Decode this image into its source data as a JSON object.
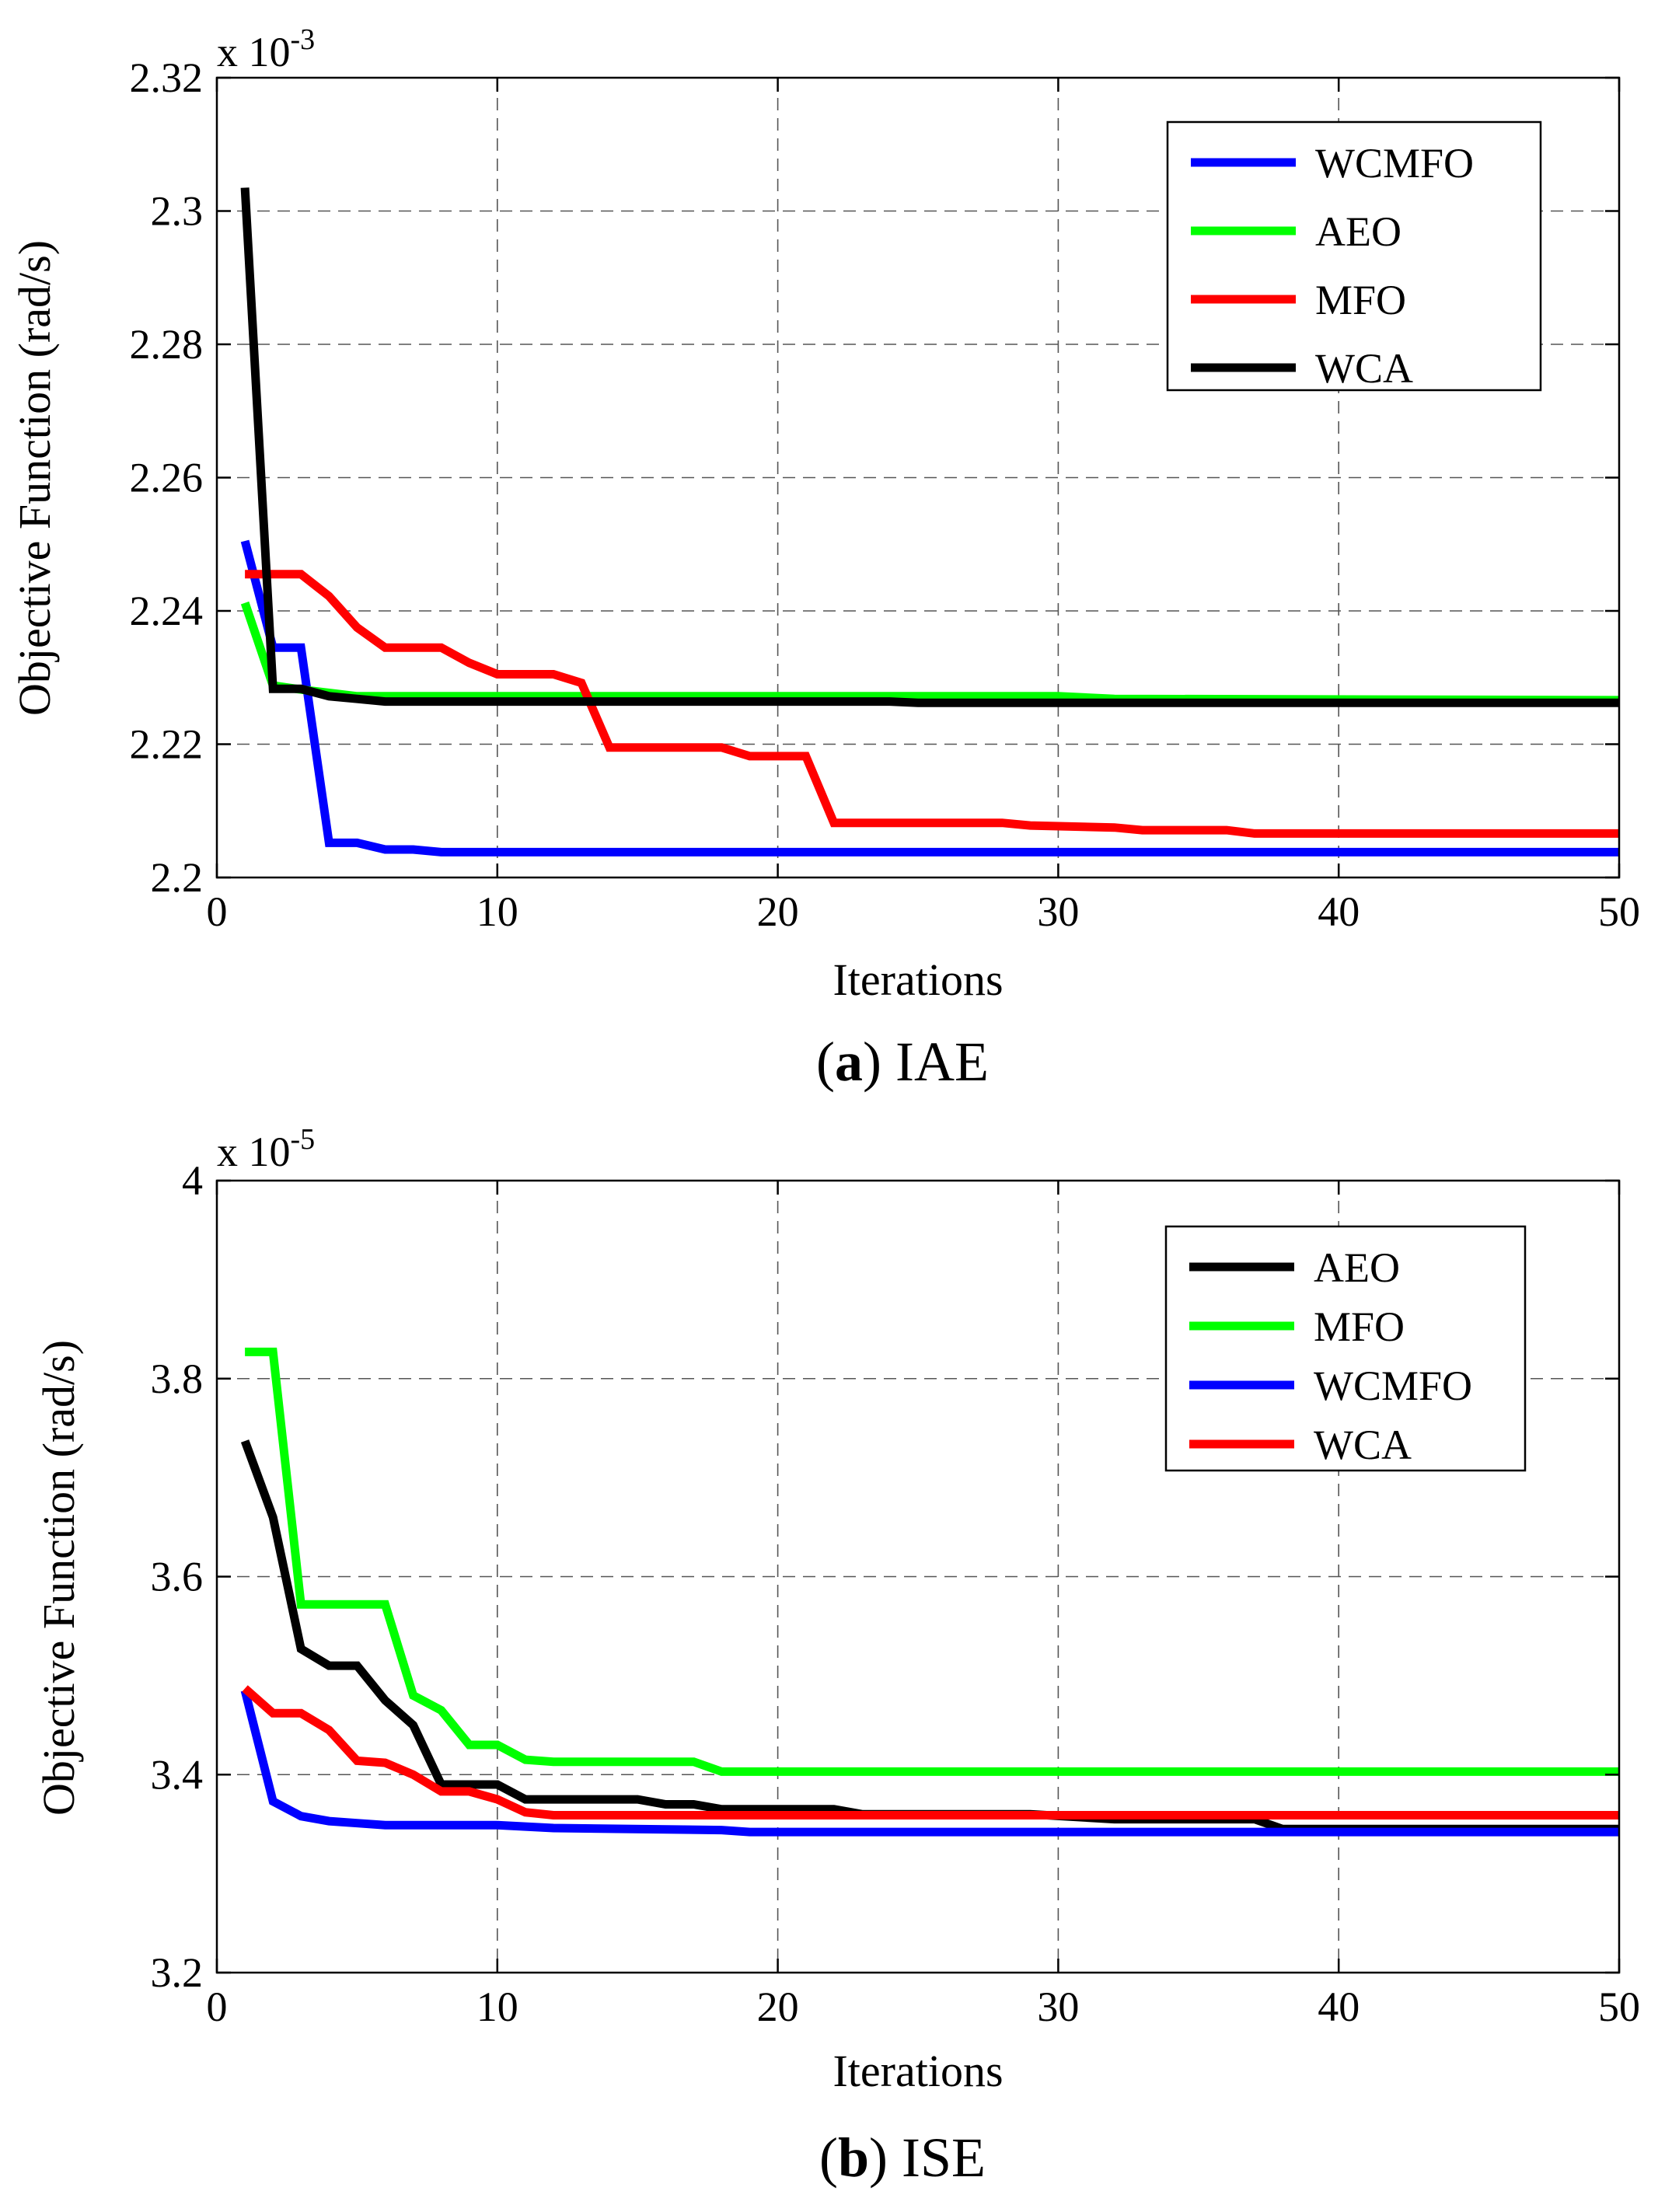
{
  "chart_data": [
    {
      "type": "line",
      "panel_letter": "a",
      "panel_name": "IAE",
      "title": "",
      "xlabel": "Iterations",
      "ylabel": "Objective Function (rad/s)",
      "y_exponent_label": "x 10",
      "y_exponent_power": "-3",
      "xlim": [
        0,
        50
      ],
      "ylim": [
        2.2,
        2.32
      ],
      "xticks": [
        "0",
        "10",
        "20",
        "30",
        "40",
        "50"
      ],
      "yticks": [
        "2.2",
        "2.22",
        "2.24",
        "2.26",
        "2.28",
        "2.3",
        "2.32"
      ],
      "grid": true,
      "legend_position": "top-right",
      "series": [
        {
          "name": "WCMFO",
          "color": "#0000ff",
          "points": [
            [
              1,
              2.2505
            ],
            [
              2,
              2.2345
            ],
            [
              3,
              2.2345
            ],
            [
              4,
              2.2052
            ],
            [
              5,
              2.2052
            ],
            [
              6,
              2.2042
            ],
            [
              7,
              2.2042
            ],
            [
              8,
              2.2038
            ],
            [
              50,
              2.2038
            ]
          ]
        },
        {
          "name": "AEO",
          "color": "#00ff00",
          "points": [
            [
              1,
              2.2412
            ],
            [
              2,
              2.2288
            ],
            [
              3,
              2.2282
            ],
            [
              4,
              2.2277
            ],
            [
              5,
              2.2272
            ],
            [
              30,
              2.2272
            ],
            [
              32,
              2.2268
            ],
            [
              50,
              2.2266
            ]
          ]
        },
        {
          "name": "MFO",
          "color": "#ff0000",
          "points": [
            [
              1,
              2.2455
            ],
            [
              3,
              2.2455
            ],
            [
              4,
              2.2422
            ],
            [
              5,
              2.2375
            ],
            [
              6,
              2.2345
            ],
            [
              8,
              2.2345
            ],
            [
              9,
              2.2322
            ],
            [
              10,
              2.2305
            ],
            [
              12,
              2.2305
            ],
            [
              13,
              2.2292
            ],
            [
              14,
              2.2195
            ],
            [
              18,
              2.2195
            ],
            [
              19,
              2.2182
            ],
            [
              21,
              2.2182
            ],
            [
              22,
              2.2082
            ],
            [
              28,
              2.2082
            ],
            [
              29,
              2.2078
            ],
            [
              32,
              2.2075
            ],
            [
              33,
              2.2071
            ],
            [
              36,
              2.2071
            ],
            [
              37,
              2.2066
            ],
            [
              50,
              2.2066
            ]
          ]
        },
        {
          "name": "WCA",
          "color": "#000000",
          "points": [
            [
              1,
              2.3035
            ],
            [
              2,
              2.2283
            ],
            [
              3,
              2.2283
            ],
            [
              4,
              2.2272
            ],
            [
              5,
              2.2268
            ],
            [
              6,
              2.2264
            ],
            [
              24,
              2.2264
            ],
            [
              25,
              2.2262
            ],
            [
              50,
              2.2262
            ]
          ]
        }
      ]
    },
    {
      "type": "line",
      "panel_letter": "b",
      "panel_name": "ISE",
      "title": "",
      "xlabel": "Iterations",
      "ylabel": "Objective Function (rad/s)",
      "y_exponent_label": "x 10",
      "y_exponent_power": "-5",
      "xlim": [
        0,
        50
      ],
      "ylim": [
        3.2,
        4.0
      ],
      "xticks": [
        "0",
        "10",
        "20",
        "30",
        "40",
        "50"
      ],
      "yticks": [
        "3.2",
        "3.4",
        "3.6",
        "3.8",
        "4"
      ],
      "grid": true,
      "legend_position": "top-right",
      "series": [
        {
          "name": "AEO",
          "color": "#000000",
          "points": [
            [
              1,
              3.737
            ],
            [
              2,
              3.66
            ],
            [
              3,
              3.527
            ],
            [
              4,
              3.51
            ],
            [
              5,
              3.51
            ],
            [
              6,
              3.475
            ],
            [
              7,
              3.45
            ],
            [
              8,
              3.39
            ],
            [
              10,
              3.39
            ],
            [
              11,
              3.375
            ],
            [
              15,
              3.375
            ],
            [
              16,
              3.37
            ],
            [
              17,
              3.37
            ],
            [
              18,
              3.365
            ],
            [
              22,
              3.365
            ],
            [
              23,
              3.36
            ],
            [
              29,
              3.36
            ],
            [
              32,
              3.355
            ],
            [
              37,
              3.355
            ],
            [
              38,
              3.345
            ],
            [
              50,
              3.345
            ]
          ]
        },
        {
          "name": "MFO",
          "color": "#00ff00",
          "points": [
            [
              1,
              3.827
            ],
            [
              2,
              3.827
            ],
            [
              3,
              3.572
            ],
            [
              6,
              3.572
            ],
            [
              7,
              3.48
            ],
            [
              8,
              3.465
            ],
            [
              9,
              3.43
            ],
            [
              10,
              3.43
            ],
            [
              11,
              3.415
            ],
            [
              12,
              3.413
            ],
            [
              17,
              3.413
            ],
            [
              18,
              3.403
            ],
            [
              50,
              3.403
            ]
          ]
        },
        {
          "name": "WCMFO",
          "color": "#0000ff",
          "points": [
            [
              1,
              3.485
            ],
            [
              2,
              3.373
            ],
            [
              3,
              3.358
            ],
            [
              4,
              3.353
            ],
            [
              5,
              3.351
            ],
            [
              6,
              3.349
            ],
            [
              10,
              3.349
            ],
            [
              12,
              3.346
            ],
            [
              18,
              3.344
            ],
            [
              19,
              3.342
            ],
            [
              50,
              3.342
            ]
          ]
        },
        {
          "name": "WCA",
          "color": "#ff0000",
          "points": [
            [
              1,
              3.487
            ],
            [
              2,
              3.462
            ],
            [
              3,
              3.462
            ],
            [
              4,
              3.445
            ],
            [
              5,
              3.414
            ],
            [
              6,
              3.412
            ],
            [
              7,
              3.4
            ],
            [
              8,
              3.383
            ],
            [
              9,
              3.383
            ],
            [
              10,
              3.375
            ],
            [
              11,
              3.362
            ],
            [
              12,
              3.359
            ],
            [
              50,
              3.359
            ]
          ]
        }
      ]
    }
  ]
}
